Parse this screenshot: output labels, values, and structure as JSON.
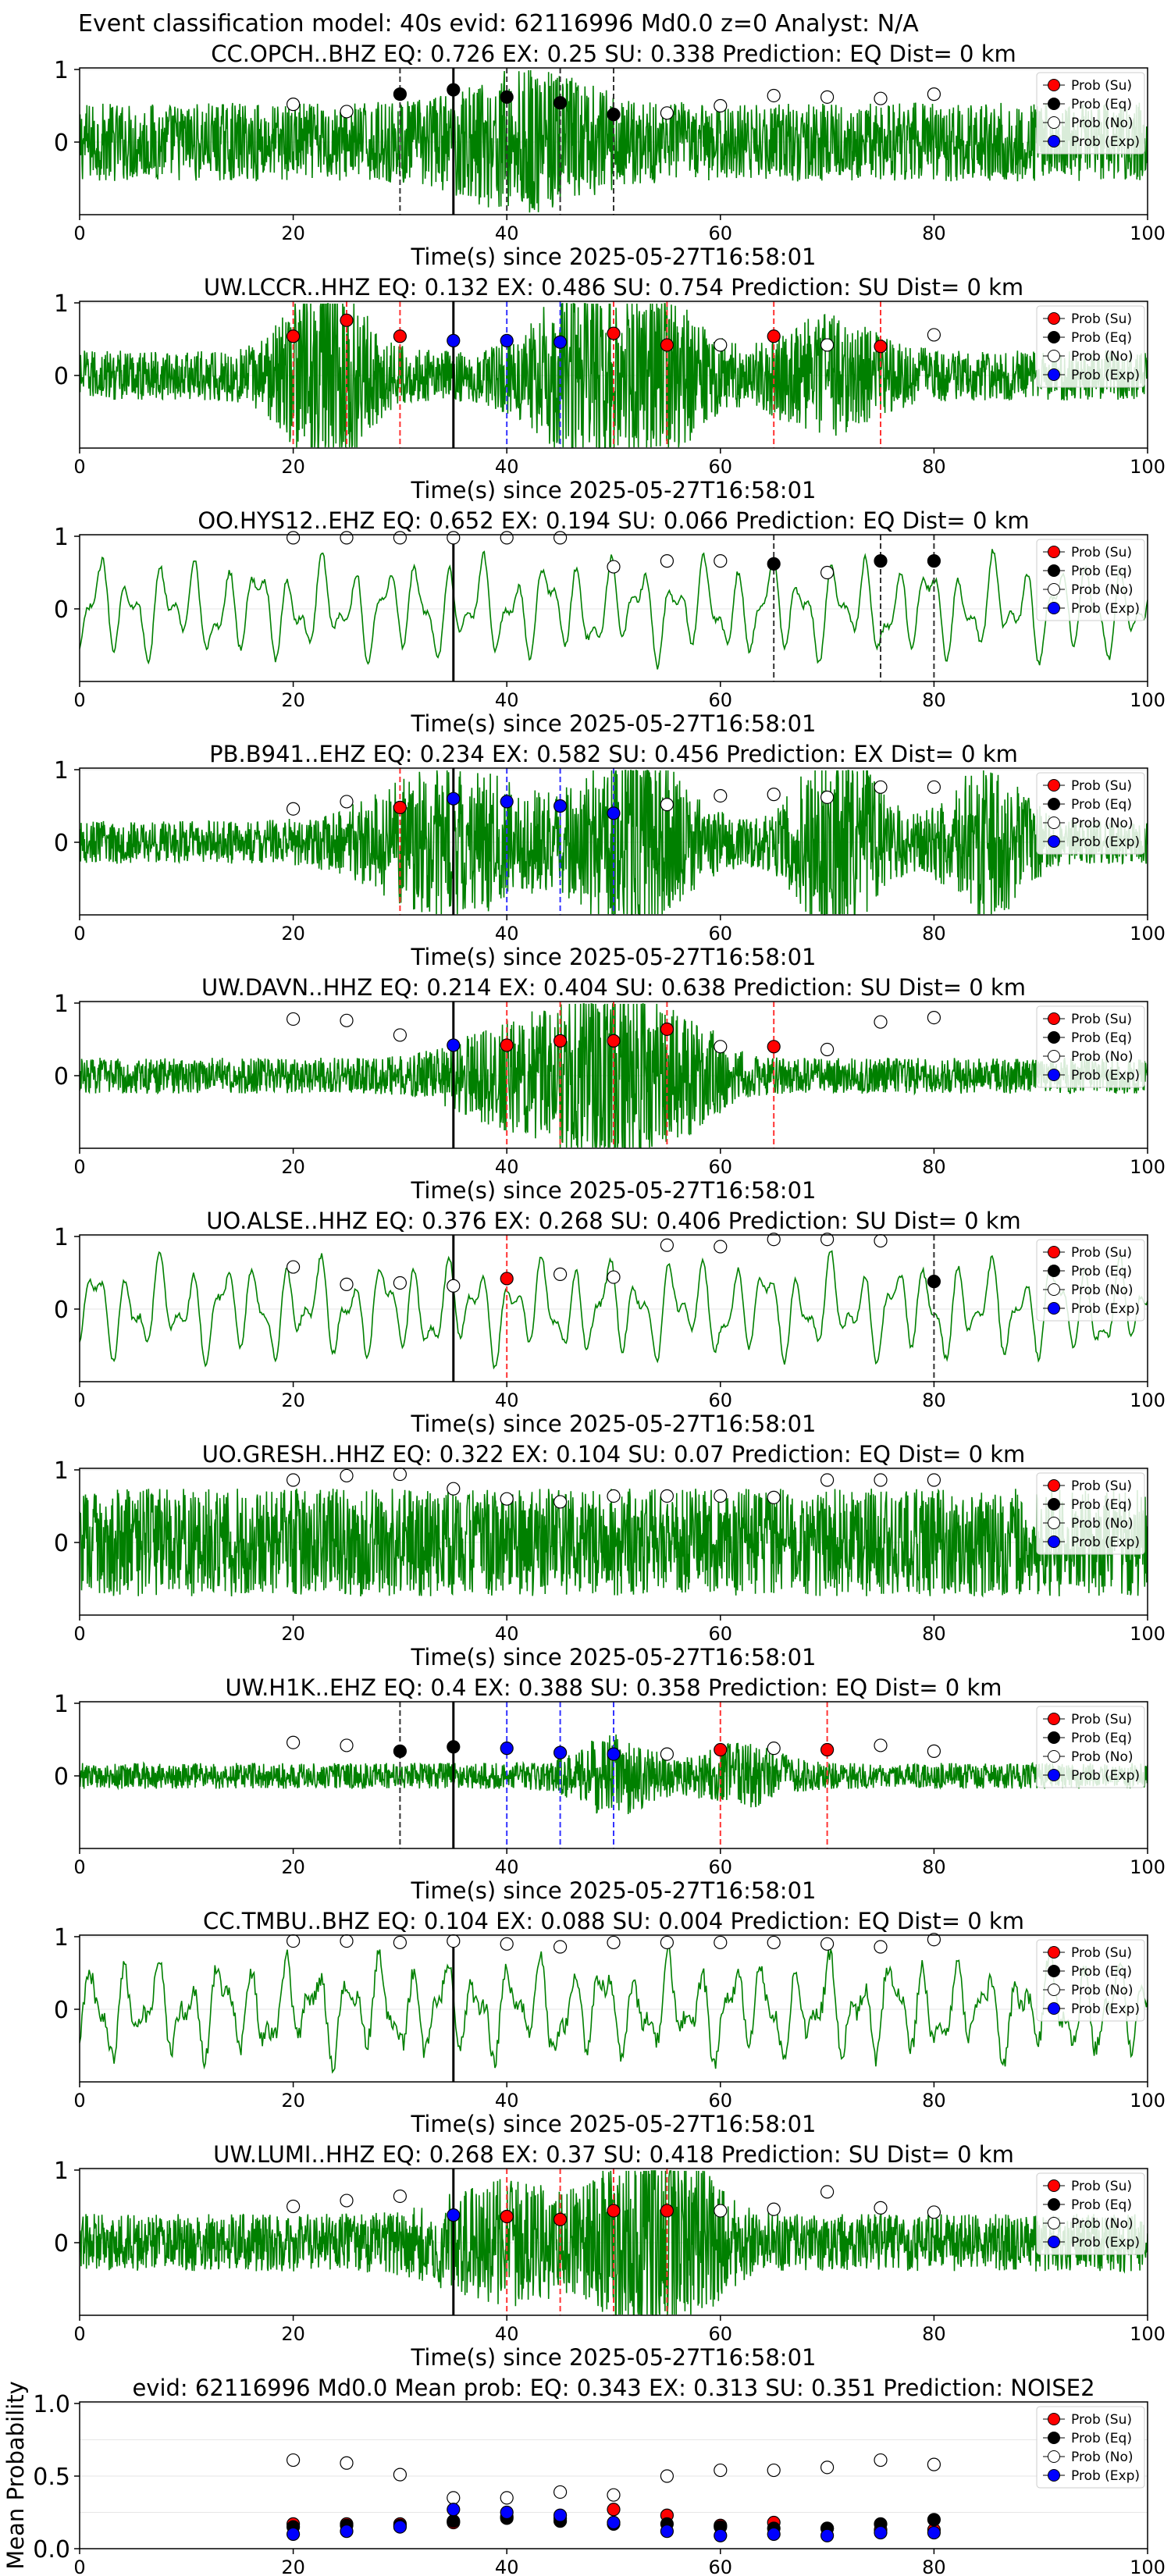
{
  "figure": {
    "suptitle": "Event classification model: 40s evid: 62116996 Md0.0 z=0 Analyst: N/A",
    "colors": {
      "trace": "#008000",
      "su": "#ff0000",
      "eq": "#000000",
      "no": "#ffffff",
      "exp": "#0000ff"
    }
  },
  "legend": [
    "Prob (Su)",
    "Prob (Eq)",
    "Prob (No)",
    "Prob (Exp)"
  ],
  "chart_data": [
    {
      "type": "line",
      "title": "CC.OPCH..BHZ   EQ: 0.726  EX: 0.25  SU: 0.338   Prediction: EQ    Dist= 0 km",
      "xlabel": "Time(s) since 2025-05-27T16:58:01",
      "xlim": [
        0,
        100
      ],
      "xticks": [
        "0",
        "20",
        "40",
        "60",
        "80",
        "100"
      ],
      "yticks": [
        "0",
        "1"
      ],
      "event_line": 35,
      "trace_style": "noisy",
      "points": [
        {
          "x": 20,
          "cls": "no",
          "p": 0.52
        },
        {
          "x": 25,
          "cls": "no",
          "p": 0.42
        },
        {
          "x": 30,
          "cls": "eq",
          "p": 0.66
        },
        {
          "x": 35,
          "cls": "eq",
          "p": 0.72
        },
        {
          "x": 40,
          "cls": "eq",
          "p": 0.62
        },
        {
          "x": 45,
          "cls": "eq",
          "p": 0.54
        },
        {
          "x": 50,
          "cls": "eq",
          "p": 0.38
        },
        {
          "x": 55,
          "cls": "no",
          "p": 0.4
        },
        {
          "x": 60,
          "cls": "no",
          "p": 0.5
        },
        {
          "x": 65,
          "cls": "no",
          "p": 0.64
        },
        {
          "x": 70,
          "cls": "no",
          "p": 0.62
        },
        {
          "x": 75,
          "cls": "no",
          "p": 0.6
        },
        {
          "x": 80,
          "cls": "no",
          "p": 0.66
        }
      ]
    },
    {
      "type": "line",
      "title": "UW.LCCR..HHZ   EQ: 0.132  EX: 0.486  SU: 0.754   Prediction: SU    Dist= 0 km",
      "xlabel": "Time(s) since 2025-05-27T16:58:01",
      "xlim": [
        0,
        100
      ],
      "xticks": [
        "0",
        "20",
        "40",
        "60",
        "80",
        "100"
      ],
      "yticks": [
        "0",
        "1"
      ],
      "event_line": 35,
      "trace_style": "burst",
      "points": [
        {
          "x": 20,
          "cls": "su",
          "p": 0.54
        },
        {
          "x": 25,
          "cls": "su",
          "p": 0.76
        },
        {
          "x": 30,
          "cls": "su",
          "p": 0.54
        },
        {
          "x": 35,
          "cls": "exp",
          "p": 0.48
        },
        {
          "x": 40,
          "cls": "exp",
          "p": 0.48
        },
        {
          "x": 45,
          "cls": "exp",
          "p": 0.46
        },
        {
          "x": 50,
          "cls": "su",
          "p": 0.58
        },
        {
          "x": 55,
          "cls": "su",
          "p": 0.42
        },
        {
          "x": 60,
          "cls": "no",
          "p": 0.42
        },
        {
          "x": 65,
          "cls": "su",
          "p": 0.54
        },
        {
          "x": 70,
          "cls": "no",
          "p": 0.42
        },
        {
          "x": 75,
          "cls": "su",
          "p": 0.4
        },
        {
          "x": 80,
          "cls": "no",
          "p": 0.56
        }
      ]
    },
    {
      "type": "line",
      "title": "OO.HYS12..EHZ   EQ: 0.652  EX: 0.194  SU: 0.066   Prediction: EQ    Dist= 0 km",
      "xlabel": "Time(s) since 2025-05-27T16:58:01",
      "xlim": [
        0,
        100
      ],
      "xticks": [
        "0",
        "20",
        "40",
        "60",
        "80",
        "100"
      ],
      "yticks": [
        "0",
        "1"
      ],
      "event_line": 35,
      "trace_style": "smooth",
      "points": [
        {
          "x": 20,
          "cls": "no",
          "p": 0.98
        },
        {
          "x": 25,
          "cls": "no",
          "p": 0.98
        },
        {
          "x": 30,
          "cls": "no",
          "p": 0.98
        },
        {
          "x": 35,
          "cls": "no",
          "p": 0.98
        },
        {
          "x": 40,
          "cls": "no",
          "p": 0.98
        },
        {
          "x": 45,
          "cls": "no",
          "p": 0.98
        },
        {
          "x": 50,
          "cls": "no",
          "p": 0.58
        },
        {
          "x": 55,
          "cls": "no",
          "p": 0.66
        },
        {
          "x": 60,
          "cls": "no",
          "p": 0.66
        },
        {
          "x": 65,
          "cls": "eq",
          "p": 0.62
        },
        {
          "x": 70,
          "cls": "no",
          "p": 0.5
        },
        {
          "x": 75,
          "cls": "eq",
          "p": 0.66
        },
        {
          "x": 80,
          "cls": "eq",
          "p": 0.66
        }
      ]
    },
    {
      "type": "line",
      "title": "PB.B941..EHZ   EQ: 0.234  EX: 0.582  SU: 0.456   Prediction: EX    Dist= 0 km",
      "xlabel": "Time(s) since 2025-05-27T16:58:01",
      "xlim": [
        0,
        100
      ],
      "xticks": [
        "0",
        "20",
        "40",
        "60",
        "80",
        "100"
      ],
      "yticks": [
        "0",
        "1"
      ],
      "event_line": 35,
      "trace_style": "burst2",
      "points": [
        {
          "x": 20,
          "cls": "no",
          "p": 0.46
        },
        {
          "x": 25,
          "cls": "no",
          "p": 0.56
        },
        {
          "x": 30,
          "cls": "su",
          "p": 0.48
        },
        {
          "x": 35,
          "cls": "exp",
          "p": 0.6
        },
        {
          "x": 40,
          "cls": "exp",
          "p": 0.56
        },
        {
          "x": 45,
          "cls": "exp",
          "p": 0.5
        },
        {
          "x": 50,
          "cls": "exp",
          "p": 0.4
        },
        {
          "x": 55,
          "cls": "no",
          "p": 0.52
        },
        {
          "x": 60,
          "cls": "no",
          "p": 0.64
        },
        {
          "x": 65,
          "cls": "no",
          "p": 0.66
        },
        {
          "x": 70,
          "cls": "no",
          "p": 0.62
        },
        {
          "x": 75,
          "cls": "no",
          "p": 0.76
        },
        {
          "x": 80,
          "cls": "no",
          "p": 0.76
        }
      ]
    },
    {
      "type": "line",
      "title": "UW.DAVN..HHZ   EQ: 0.214  EX: 0.404  SU: 0.638   Prediction: SU    Dist= 0 km",
      "xlabel": "Time(s) since 2025-05-27T16:58:01",
      "xlim": [
        0,
        100
      ],
      "xticks": [
        "0",
        "20",
        "40",
        "60",
        "80",
        "100"
      ],
      "yticks": [
        "0",
        "1"
      ],
      "event_line": 35,
      "trace_style": "burst3",
      "points": [
        {
          "x": 20,
          "cls": "no",
          "p": 0.78
        },
        {
          "x": 25,
          "cls": "no",
          "p": 0.76
        },
        {
          "x": 30,
          "cls": "no",
          "p": 0.56
        },
        {
          "x": 35,
          "cls": "exp",
          "p": 0.42
        },
        {
          "x": 40,
          "cls": "su",
          "p": 0.42
        },
        {
          "x": 45,
          "cls": "su",
          "p": 0.48
        },
        {
          "x": 50,
          "cls": "su",
          "p": 0.48
        },
        {
          "x": 55,
          "cls": "su",
          "p": 0.64
        },
        {
          "x": 60,
          "cls": "no",
          "p": 0.4
        },
        {
          "x": 65,
          "cls": "su",
          "p": 0.4
        },
        {
          "x": 70,
          "cls": "no",
          "p": 0.36
        },
        {
          "x": 75,
          "cls": "no",
          "p": 0.74
        },
        {
          "x": 80,
          "cls": "no",
          "p": 0.8
        }
      ]
    },
    {
      "type": "line",
      "title": "UO.ALSE..HHZ   EQ: 0.376  EX: 0.268  SU: 0.406   Prediction: SU    Dist= 0 km",
      "xlabel": "Time(s) since 2025-05-27T16:58:01",
      "xlim": [
        0,
        100
      ],
      "xticks": [
        "0",
        "20",
        "40",
        "60",
        "80",
        "100"
      ],
      "yticks": [
        "0",
        "1"
      ],
      "event_line": 35,
      "trace_style": "smooth2",
      "points": [
        {
          "x": 20,
          "cls": "no",
          "p": 0.58
        },
        {
          "x": 25,
          "cls": "no",
          "p": 0.34
        },
        {
          "x": 30,
          "cls": "no",
          "p": 0.36
        },
        {
          "x": 35,
          "cls": "no",
          "p": 0.32
        },
        {
          "x": 40,
          "cls": "su",
          "p": 0.42
        },
        {
          "x": 45,
          "cls": "no",
          "p": 0.48
        },
        {
          "x": 50,
          "cls": "no",
          "p": 0.44
        },
        {
          "x": 55,
          "cls": "no",
          "p": 0.88
        },
        {
          "x": 60,
          "cls": "no",
          "p": 0.86
        },
        {
          "x": 65,
          "cls": "no",
          "p": 0.96
        },
        {
          "x": 70,
          "cls": "no",
          "p": 0.96
        },
        {
          "x": 75,
          "cls": "no",
          "p": 0.94
        },
        {
          "x": 80,
          "cls": "eq",
          "p": 0.38
        }
      ]
    },
    {
      "type": "line",
      "title": "UO.GRESH..HHZ   EQ: 0.322  EX: 0.104  SU: 0.07   Prediction: EQ    Dist= 0 km",
      "xlabel": "Time(s) since 2025-05-27T16:58:01",
      "xlim": [
        0,
        100
      ],
      "xticks": [
        "0",
        "20",
        "40",
        "60",
        "80",
        "100"
      ],
      "yticks": [
        "0",
        "1"
      ],
      "event_line": null,
      "trace_style": "noisy2",
      "points": [
        {
          "x": 20,
          "cls": "no",
          "p": 0.86
        },
        {
          "x": 25,
          "cls": "no",
          "p": 0.92
        },
        {
          "x": 30,
          "cls": "no",
          "p": 0.94
        },
        {
          "x": 35,
          "cls": "no",
          "p": 0.74
        },
        {
          "x": 40,
          "cls": "no",
          "p": 0.6
        },
        {
          "x": 45,
          "cls": "no",
          "p": 0.56
        },
        {
          "x": 50,
          "cls": "no",
          "p": 0.64
        },
        {
          "x": 55,
          "cls": "no",
          "p": 0.64
        },
        {
          "x": 60,
          "cls": "no",
          "p": 0.64
        },
        {
          "x": 65,
          "cls": "no",
          "p": 0.62
        },
        {
          "x": 70,
          "cls": "no",
          "p": 0.86
        },
        {
          "x": 75,
          "cls": "no",
          "p": 0.86
        },
        {
          "x": 80,
          "cls": "no",
          "p": 0.86
        }
      ]
    },
    {
      "type": "line",
      "title": "UW.H1K..EHZ   EQ: 0.4  EX: 0.388  SU: 0.358   Prediction: EQ    Dist= 0 km",
      "xlabel": "Time(s) since 2025-05-27T16:58:01",
      "xlim": [
        0,
        100
      ],
      "xticks": [
        "0",
        "20",
        "40",
        "60",
        "80",
        "100"
      ],
      "yticks": [
        "0",
        "1"
      ],
      "event_line": 35,
      "trace_style": "quiet",
      "points": [
        {
          "x": 20,
          "cls": "no",
          "p": 0.46
        },
        {
          "x": 25,
          "cls": "no",
          "p": 0.42
        },
        {
          "x": 30,
          "cls": "eq",
          "p": 0.34
        },
        {
          "x": 35,
          "cls": "eq",
          "p": 0.4
        },
        {
          "x": 40,
          "cls": "exp",
          "p": 0.38
        },
        {
          "x": 45,
          "cls": "exp",
          "p": 0.32
        },
        {
          "x": 50,
          "cls": "exp",
          "p": 0.3
        },
        {
          "x": 55,
          "cls": "no",
          "p": 0.3
        },
        {
          "x": 60,
          "cls": "su",
          "p": 0.36
        },
        {
          "x": 65,
          "cls": "no",
          "p": 0.38
        },
        {
          "x": 70,
          "cls": "su",
          "p": 0.36
        },
        {
          "x": 75,
          "cls": "no",
          "p": 0.42
        },
        {
          "x": 80,
          "cls": "no",
          "p": 0.34
        }
      ]
    },
    {
      "type": "line",
      "title": "CC.TMBU..BHZ   EQ: 0.104  EX: 0.088  SU: 0.004   Prediction: EQ    Dist= 0 km",
      "xlabel": "Time(s) since 2025-05-27T16:58:01",
      "xlim": [
        0,
        100
      ],
      "xticks": [
        "0",
        "20",
        "40",
        "60",
        "80",
        "100"
      ],
      "yticks": [
        "0",
        "1"
      ],
      "event_line": 35,
      "trace_style": "smooth3",
      "points": [
        {
          "x": 20,
          "cls": "no",
          "p": 0.94
        },
        {
          "x": 25,
          "cls": "no",
          "p": 0.94
        },
        {
          "x": 30,
          "cls": "no",
          "p": 0.92
        },
        {
          "x": 35,
          "cls": "no",
          "p": 0.94
        },
        {
          "x": 40,
          "cls": "no",
          "p": 0.9
        },
        {
          "x": 45,
          "cls": "no",
          "p": 0.86
        },
        {
          "x": 50,
          "cls": "no",
          "p": 0.92
        },
        {
          "x": 55,
          "cls": "no",
          "p": 0.92
        },
        {
          "x": 60,
          "cls": "no",
          "p": 0.92
        },
        {
          "x": 65,
          "cls": "no",
          "p": 0.92
        },
        {
          "x": 70,
          "cls": "no",
          "p": 0.9
        },
        {
          "x": 75,
          "cls": "no",
          "p": 0.86
        },
        {
          "x": 80,
          "cls": "no",
          "p": 0.96
        }
      ]
    },
    {
      "type": "line",
      "title": "UW.LUMI..HHZ   EQ: 0.268  EX: 0.37  SU: 0.418   Prediction: SU    Dist= 0 km",
      "xlabel": "Time(s) since 2025-05-27T16:58:01",
      "xlim": [
        0,
        100
      ],
      "xticks": [
        "0",
        "20",
        "40",
        "60",
        "80",
        "100"
      ],
      "yticks": [
        "0",
        "1"
      ],
      "event_line": 35,
      "trace_style": "burst4",
      "points": [
        {
          "x": 20,
          "cls": "no",
          "p": 0.5
        },
        {
          "x": 25,
          "cls": "no",
          "p": 0.58
        },
        {
          "x": 30,
          "cls": "no",
          "p": 0.64
        },
        {
          "x": 35,
          "cls": "exp",
          "p": 0.38
        },
        {
          "x": 40,
          "cls": "su",
          "p": 0.36
        },
        {
          "x": 45,
          "cls": "su",
          "p": 0.32
        },
        {
          "x": 50,
          "cls": "su",
          "p": 0.44
        },
        {
          "x": 55,
          "cls": "su",
          "p": 0.44
        },
        {
          "x": 60,
          "cls": "no",
          "p": 0.44
        },
        {
          "x": 65,
          "cls": "no",
          "p": 0.46
        },
        {
          "x": 70,
          "cls": "no",
          "p": 0.7
        },
        {
          "x": 75,
          "cls": "no",
          "p": 0.48
        },
        {
          "x": 80,
          "cls": "no",
          "p": 0.42
        }
      ]
    },
    {
      "type": "scatter",
      "title": "evid: 62116996  Md0.0   Mean prob:   EQ: 0.343  EX: 0.313  SU: 0.351   Prediction: NOISE2",
      "ylabel": "Mean Probability",
      "xlim": [
        0,
        100
      ],
      "ylim": [
        0,
        1
      ],
      "xticks": [
        "0",
        "20",
        "40",
        "60",
        "80",
        "100"
      ],
      "yticks": [
        "0.0",
        "0.5",
        "1.0"
      ],
      "x": [
        20,
        25,
        30,
        35,
        40,
        45,
        50,
        55,
        60,
        65,
        70,
        75,
        80
      ],
      "series": [
        {
          "name": "Prob (No)",
          "cls": "no",
          "values": [
            0.61,
            0.59,
            0.51,
            0.35,
            0.35,
            0.39,
            0.37,
            0.5,
            0.54,
            0.54,
            0.56,
            0.61,
            0.58
          ]
        },
        {
          "name": "Prob (Su)",
          "cls": "su",
          "values": [
            0.17,
            0.17,
            0.17,
            0.18,
            0.22,
            0.21,
            0.27,
            0.23,
            0.16,
            0.18,
            0.14,
            0.13,
            0.13
          ]
        },
        {
          "name": "Prob (Eq)",
          "cls": "eq",
          "values": [
            0.15,
            0.16,
            0.16,
            0.19,
            0.21,
            0.19,
            0.17,
            0.17,
            0.15,
            0.14,
            0.14,
            0.17,
            0.2
          ]
        },
        {
          "name": "Prob (Exp)",
          "cls": "exp",
          "values": [
            0.1,
            0.12,
            0.15,
            0.27,
            0.25,
            0.23,
            0.18,
            0.12,
            0.09,
            0.1,
            0.09,
            0.11,
            0.11
          ]
        }
      ]
    }
  ]
}
